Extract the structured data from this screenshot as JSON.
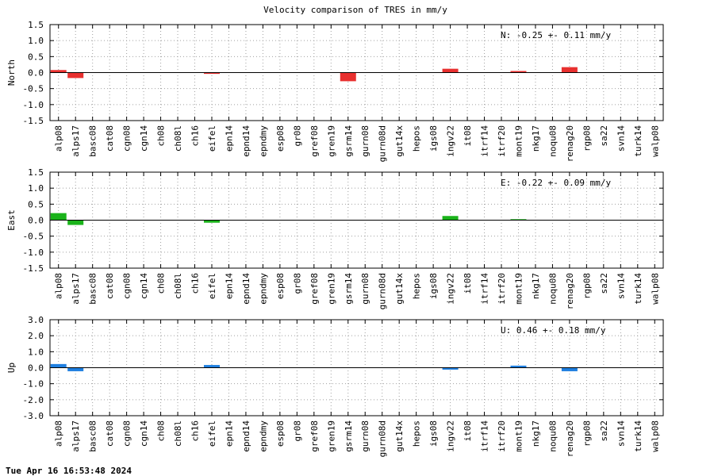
{
  "chart_data": {
    "title": "Velocity comparison of TRES in mm/y",
    "type": "bar",
    "categories": [
      "alp08",
      "alps17",
      "basc08",
      "cat08",
      "cgn08",
      "cgn14",
      "ch08",
      "ch08l",
      "ch16",
      "eifel",
      "epn14",
      "epnd14",
      "epndmy",
      "esp08",
      "gr08",
      "gref08",
      "gren19",
      "gsrm14",
      "gurn08",
      "gurn08d",
      "gut14x",
      "hepos",
      "igs08",
      "ingv22",
      "it08",
      "itrf14",
      "itrf20",
      "mont19",
      "nkg17",
      "noqu08",
      "renag20",
      "rgp08",
      "sa22",
      "svn14",
      "turk14",
      "walp08"
    ],
    "panels": [
      {
        "ylabel": "North",
        "ylim": [
          -1.5,
          1.5
        ],
        "yticks": [
          "-1.5",
          "-1.0",
          "-0.5",
          "0.0",
          "0.5",
          "1.0",
          "1.5"
        ],
        "tick_values": [
          -1.5,
          -1.0,
          -0.5,
          0.0,
          0.5,
          1.0,
          1.5
        ],
        "annotation": "N:  -0.25 +-  0.11 mm/y",
        "color": "#e8302f",
        "values": [
          0.08,
          -0.17,
          0,
          0,
          0,
          0,
          0,
          0,
          0,
          -0.04,
          0,
          0,
          0,
          0,
          0,
          0,
          0,
          -0.27,
          0,
          0,
          0,
          0,
          0,
          0.12,
          0,
          0,
          0,
          0.05,
          0,
          0,
          0.17,
          0,
          0,
          0,
          0,
          0
        ]
      },
      {
        "ylabel": "East",
        "ylim": [
          -1.5,
          1.5
        ],
        "yticks": [
          "-1.5",
          "-1.0",
          "-0.5",
          "0.0",
          "0.5",
          "1.0",
          "1.5"
        ],
        "tick_values": [
          -1.5,
          -1.0,
          -0.5,
          0.0,
          0.5,
          1.0,
          1.5
        ],
        "annotation": "E:  -0.22 +-  0.09 mm/y",
        "color": "#1ab31a",
        "values": [
          0.22,
          -0.15,
          0,
          0,
          0,
          0,
          0,
          0,
          0,
          -0.08,
          0,
          0,
          0,
          0,
          0,
          0,
          0,
          0,
          0,
          0,
          0,
          0,
          0,
          0.13,
          0,
          0,
          0,
          0.03,
          0,
          0,
          0,
          0,
          0,
          0,
          0,
          0
        ]
      },
      {
        "ylabel": "Up",
        "ylim": [
          -3.0,
          3.0
        ],
        "yticks": [
          "-3.0",
          "-2.0",
          "-1.0",
          "0.0",
          "1.0",
          "2.0",
          "3.0"
        ],
        "tick_values": [
          -3.0,
          -2.0,
          -1.0,
          0.0,
          1.0,
          2.0,
          3.0
        ],
        "annotation": "U:   0.46 +-  0.18 mm/y",
        "color": "#1f7fe0",
        "values": [
          0.23,
          -0.22,
          0,
          0,
          0,
          0,
          0,
          0,
          0,
          0.17,
          0,
          0,
          0,
          0,
          0,
          0,
          0,
          0,
          0,
          0,
          0,
          0,
          0,
          -0.12,
          0,
          0,
          0,
          0.13,
          0,
          0,
          -0.22,
          0,
          0,
          0,
          0,
          0
        ]
      }
    ],
    "grid": true
  },
  "footer": {
    "timestamp": "Tue Apr 16 16:53:48 2024"
  }
}
